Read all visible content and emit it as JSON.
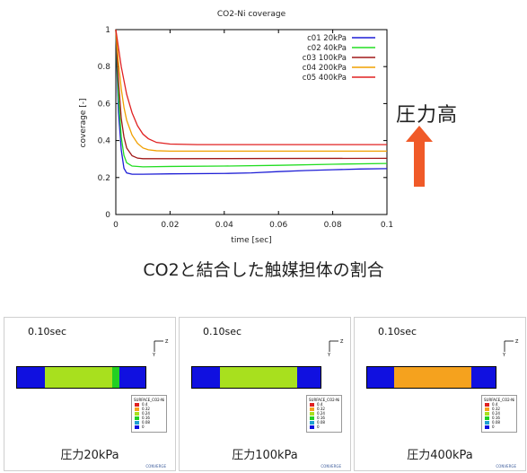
{
  "chart_data": {
    "type": "line",
    "title": "CO2-Ni coverage",
    "xlabel": "time [sec]",
    "ylabel": "coverage [-]",
    "xlim": [
      0,
      0.1
    ],
    "ylim": [
      0,
      1
    ],
    "xticks": [
      "0",
      "0.02",
      "0.04",
      "0.06",
      "0.08",
      "0.1"
    ],
    "yticks": [
      "0",
      "0.2",
      "0.4",
      "0.6",
      "0.8",
      "1"
    ],
    "legend_position": "top-right",
    "grid": false,
    "series": [
      {
        "name": "c01 20kPa",
        "color": "#1f1fd6",
        "points": [
          [
            0,
            1
          ],
          [
            0.0005,
            0.75
          ],
          [
            0.001,
            0.55
          ],
          [
            0.002,
            0.35
          ],
          [
            0.003,
            0.25
          ],
          [
            0.004,
            0.225
          ],
          [
            0.006,
            0.218
          ],
          [
            0.01,
            0.218
          ],
          [
            0.02,
            0.22
          ],
          [
            0.04,
            0.222
          ],
          [
            0.05,
            0.225
          ],
          [
            0.06,
            0.232
          ],
          [
            0.07,
            0.238
          ],
          [
            0.08,
            0.242
          ],
          [
            0.09,
            0.246
          ],
          [
            0.1,
            0.248
          ]
        ]
      },
      {
        "name": "c02 40kPa",
        "color": "#22dd22",
        "points": [
          [
            0,
            1
          ],
          [
            0.0005,
            0.8
          ],
          [
            0.001,
            0.63
          ],
          [
            0.002,
            0.42
          ],
          [
            0.003,
            0.32
          ],
          [
            0.004,
            0.28
          ],
          [
            0.006,
            0.262
          ],
          [
            0.01,
            0.258
          ],
          [
            0.02,
            0.26
          ],
          [
            0.04,
            0.262
          ],
          [
            0.06,
            0.266
          ],
          [
            0.08,
            0.272
          ],
          [
            0.1,
            0.276
          ]
        ]
      },
      {
        "name": "c03 100kPa",
        "color": "#a01818",
        "points": [
          [
            0,
            1
          ],
          [
            0.0005,
            0.85
          ],
          [
            0.001,
            0.72
          ],
          [
            0.002,
            0.52
          ],
          [
            0.003,
            0.42
          ],
          [
            0.004,
            0.36
          ],
          [
            0.006,
            0.318
          ],
          [
            0.008,
            0.305
          ],
          [
            0.01,
            0.302
          ],
          [
            0.02,
            0.302
          ],
          [
            0.06,
            0.303
          ],
          [
            0.1,
            0.304
          ]
        ]
      },
      {
        "name": "c04 200kPa",
        "color": "#f0a000",
        "points": [
          [
            0,
            1
          ],
          [
            0.001,
            0.82
          ],
          [
            0.002,
            0.68
          ],
          [
            0.003,
            0.58
          ],
          [
            0.004,
            0.51
          ],
          [
            0.006,
            0.43
          ],
          [
            0.008,
            0.385
          ],
          [
            0.01,
            0.36
          ],
          [
            0.012,
            0.35
          ],
          [
            0.015,
            0.345
          ],
          [
            0.02,
            0.343
          ],
          [
            0.1,
            0.343
          ]
        ]
      },
      {
        "name": "c05 400kPa",
        "color": "#e02020",
        "points": [
          [
            0,
            1
          ],
          [
            0.001,
            0.9
          ],
          [
            0.002,
            0.8
          ],
          [
            0.004,
            0.65
          ],
          [
            0.006,
            0.55
          ],
          [
            0.008,
            0.48
          ],
          [
            0.01,
            0.435
          ],
          [
            0.012,
            0.41
          ],
          [
            0.015,
            0.39
          ],
          [
            0.02,
            0.381
          ],
          [
            0.03,
            0.378
          ],
          [
            0.1,
            0.378
          ]
        ]
      }
    ]
  },
  "annotation": {
    "pressure_high": "圧力高",
    "arrow_color": "#f05a28"
  },
  "caption": "CO2と結合した触媒担体の割合",
  "panels": [
    {
      "time": "0.10sec",
      "label": "圧力20kPa",
      "segments": [
        {
          "color": "#1010e0",
          "width": 0.22
        },
        {
          "color": "#a8e01e",
          "width": 0.52
        },
        {
          "color": "#22d022",
          "width": 0.06
        },
        {
          "color": "#1010e0",
          "width": 0.2
        }
      ]
    },
    {
      "time": "0.10sec",
      "label": "圧力100kPa",
      "segments": [
        {
          "color": "#1010e0",
          "width": 0.22
        },
        {
          "color": "#a8e01e",
          "width": 0.6
        },
        {
          "color": "#1010e0",
          "width": 0.18
        }
      ]
    },
    {
      "time": "0.10sec",
      "label": "圧力400kPa",
      "segments": [
        {
          "color": "#1010e0",
          "width": 0.21
        },
        {
          "color": "#f5a21e",
          "width": 0.6
        },
        {
          "color": "#1010e0",
          "width": 0.19
        }
      ]
    }
  ],
  "colorbar": {
    "title": "SURFACE_CO2-Ni",
    "levels": [
      "0.4",
      "0.32",
      "0.24",
      "0.16",
      "0.08",
      "0"
    ],
    "colors": [
      "#e02020",
      "#f5a21e",
      "#a8e01e",
      "#22d022",
      "#20a0d0",
      "#1010e0"
    ]
  },
  "axis_triad": {
    "z": "Z",
    "y": "Y"
  },
  "logo_text": "CONVERGE"
}
